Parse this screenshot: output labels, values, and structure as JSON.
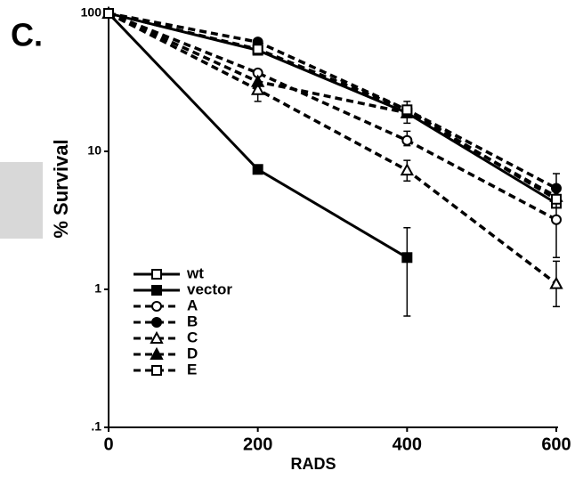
{
  "chart_data": {
    "type": "line",
    "panel_label": "C.",
    "xlabel": "RADS",
    "ylabel": "% Survival",
    "x": [
      0,
      200,
      400,
      600
    ],
    "xlim": [
      0,
      600
    ],
    "xticks": [
      0,
      200,
      400,
      600
    ],
    "ylim": [
      0.1,
      100
    ],
    "yticks": [
      100,
      10,
      1,
      {
        "value": 0.1,
        "label": ".1"
      }
    ],
    "log_y": true,
    "legend": "lower left",
    "series": [
      {
        "name": "wt",
        "color": "#000",
        "marker": "square",
        "filled": false,
        "dashed": false,
        "values": [
          100,
          54,
          19,
          4.2
        ],
        "err_low": [
          null,
          null,
          16,
          null
        ],
        "err_high": [
          null,
          null,
          23,
          null
        ]
      },
      {
        "name": "vector",
        "color": "#000",
        "marker": "square",
        "filled": true,
        "dashed": false,
        "values": [
          100,
          7.4,
          1.7,
          null
        ],
        "err_low": [
          null,
          null,
          0.64,
          null
        ],
        "err_high": [
          null,
          null,
          2.8,
          null
        ]
      },
      {
        "name": "A",
        "color": "#000",
        "marker": "circle",
        "filled": false,
        "dashed": true,
        "values": [
          100,
          37,
          12,
          3.2
        ],
        "err_low": [
          null,
          null,
          11,
          1.7
        ],
        "err_high": [
          null,
          null,
          14,
          5.3
        ]
      },
      {
        "name": "B",
        "color": "#000",
        "marker": "circle",
        "filled": true,
        "dashed": true,
        "values": [
          100,
          62,
          20,
          5.4
        ],
        "err_low": [
          null,
          null,
          null,
          4.3
        ],
        "err_high": [
          null,
          null,
          null,
          6.9
        ]
      },
      {
        "name": "C",
        "color": "#000",
        "marker": "triangle",
        "filled": false,
        "dashed": true,
        "values": [
          100,
          28,
          7.3,
          1.1
        ],
        "err_low": [
          null,
          23,
          6.1,
          0.75
        ],
        "err_high": [
          null,
          32,
          8.6,
          1.6
        ]
      },
      {
        "name": "D",
        "color": "#000",
        "marker": "triangle",
        "filled": true,
        "dashed": true,
        "values": [
          100,
          32,
          19,
          4.7
        ],
        "err_low": [
          null,
          null,
          null,
          null
        ],
        "err_high": [
          null,
          null,
          null,
          null
        ]
      },
      {
        "name": "E",
        "color": "#000",
        "marker": "square",
        "filled": false,
        "dashed": true,
        "values": [
          100,
          55,
          20,
          4.5
        ],
        "err_low": [
          null,
          null,
          null,
          null
        ],
        "err_high": [
          null,
          null,
          null,
          null
        ]
      }
    ]
  }
}
